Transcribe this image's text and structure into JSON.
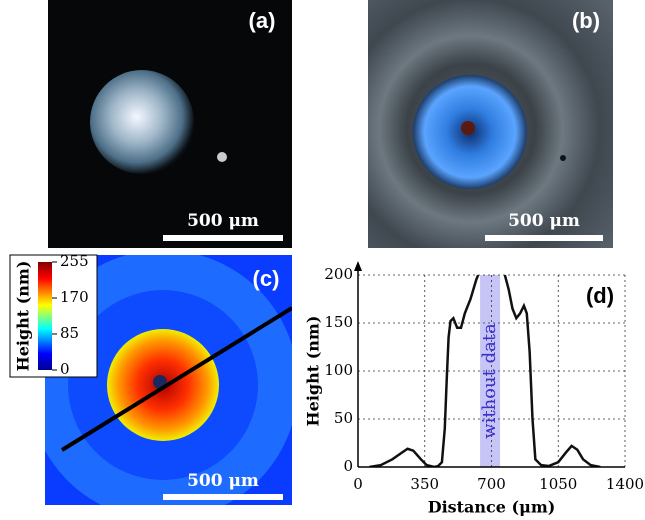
{
  "panels": [
    {
      "label": "(a)",
      "scale_bar": "500 μm"
    },
    {
      "label": "(b)",
      "scale_bar": "500 μm"
    },
    {
      "label": "(c)",
      "scale_bar": "500 μm"
    }
  ],
  "colorbar": {
    "label": "Height (nm)",
    "ticks": [
      255,
      170,
      85,
      0
    ]
  },
  "chart_data": {
    "type": "line",
    "panel_label": "(d)",
    "xlabel": "Distance (μm)",
    "ylabel": "Height (nm)",
    "x": [
      60,
      120,
      180,
      230,
      260,
      290,
      330,
      360,
      400,
      420,
      440,
      455,
      465,
      475,
      485,
      500,
      520,
      540,
      560,
      590,
      620,
      630,
      700,
      770,
      790,
      810,
      830,
      850,
      870,
      885,
      900,
      915,
      930,
      960,
      1000,
      1050,
      1090,
      1120,
      1150,
      1180,
      1220,
      1270
    ],
    "values": [
      0,
      2,
      8,
      15,
      19,
      17,
      8,
      2,
      0,
      1,
      5,
      40,
      90,
      135,
      152,
      155,
      145,
      145,
      160,
      175,
      195,
      200,
      null,
      200,
      185,
      165,
      155,
      160,
      168,
      160,
      120,
      50,
      8,
      2,
      1,
      5,
      15,
      22,
      18,
      8,
      2,
      0
    ],
    "color": "#111111",
    "xlim": [
      0,
      1400
    ],
    "ylim": [
      0,
      200
    ],
    "xticks": [
      0,
      350,
      700,
      1050,
      1400
    ],
    "yticks": [
      0,
      50,
      100,
      150,
      200
    ],
    "grid": true,
    "band": {
      "range": [
        640,
        745
      ],
      "label": "without data",
      "color": "#b9b6f2"
    }
  }
}
